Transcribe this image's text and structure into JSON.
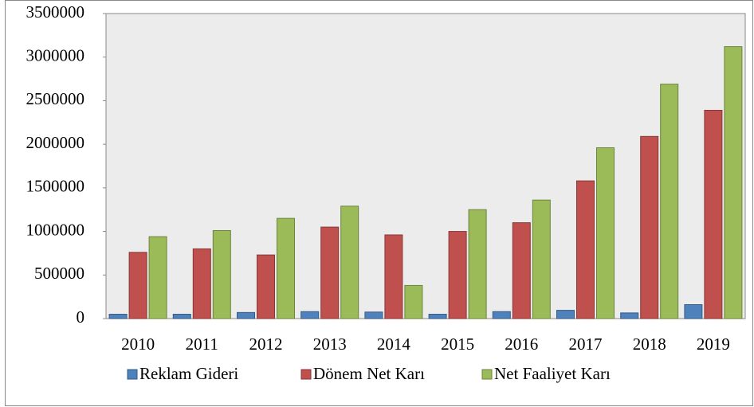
{
  "chart_data": {
    "type": "bar",
    "categories": [
      "2010",
      "2011",
      "2012",
      "2013",
      "2014",
      "2015",
      "2016",
      "2017",
      "2018",
      "2019"
    ],
    "series": [
      {
        "name": "Reklam Gideri",
        "color": "#4f81bd",
        "values": [
          50000,
          50000,
          70000,
          80000,
          75000,
          50000,
          80000,
          95000,
          65000,
          160000
        ]
      },
      {
        "name": "Dönem Net Karı",
        "color": "#c0504d",
        "values": [
          760000,
          800000,
          730000,
          1050000,
          960000,
          1000000,
          1100000,
          1580000,
          2090000,
          2390000
        ]
      },
      {
        "name": "Net Faaliyet Karı",
        "color": "#9bbb59",
        "values": [
          940000,
          1010000,
          1150000,
          1290000,
          380000,
          1250000,
          1360000,
          1960000,
          2690000,
          3120000
        ]
      }
    ],
    "ylim": [
      0,
      3500000
    ],
    "yticks": [
      0,
      500000,
      1000000,
      1500000,
      2000000,
      2500000,
      3000000,
      3500000
    ],
    "legend": "bottom"
  }
}
